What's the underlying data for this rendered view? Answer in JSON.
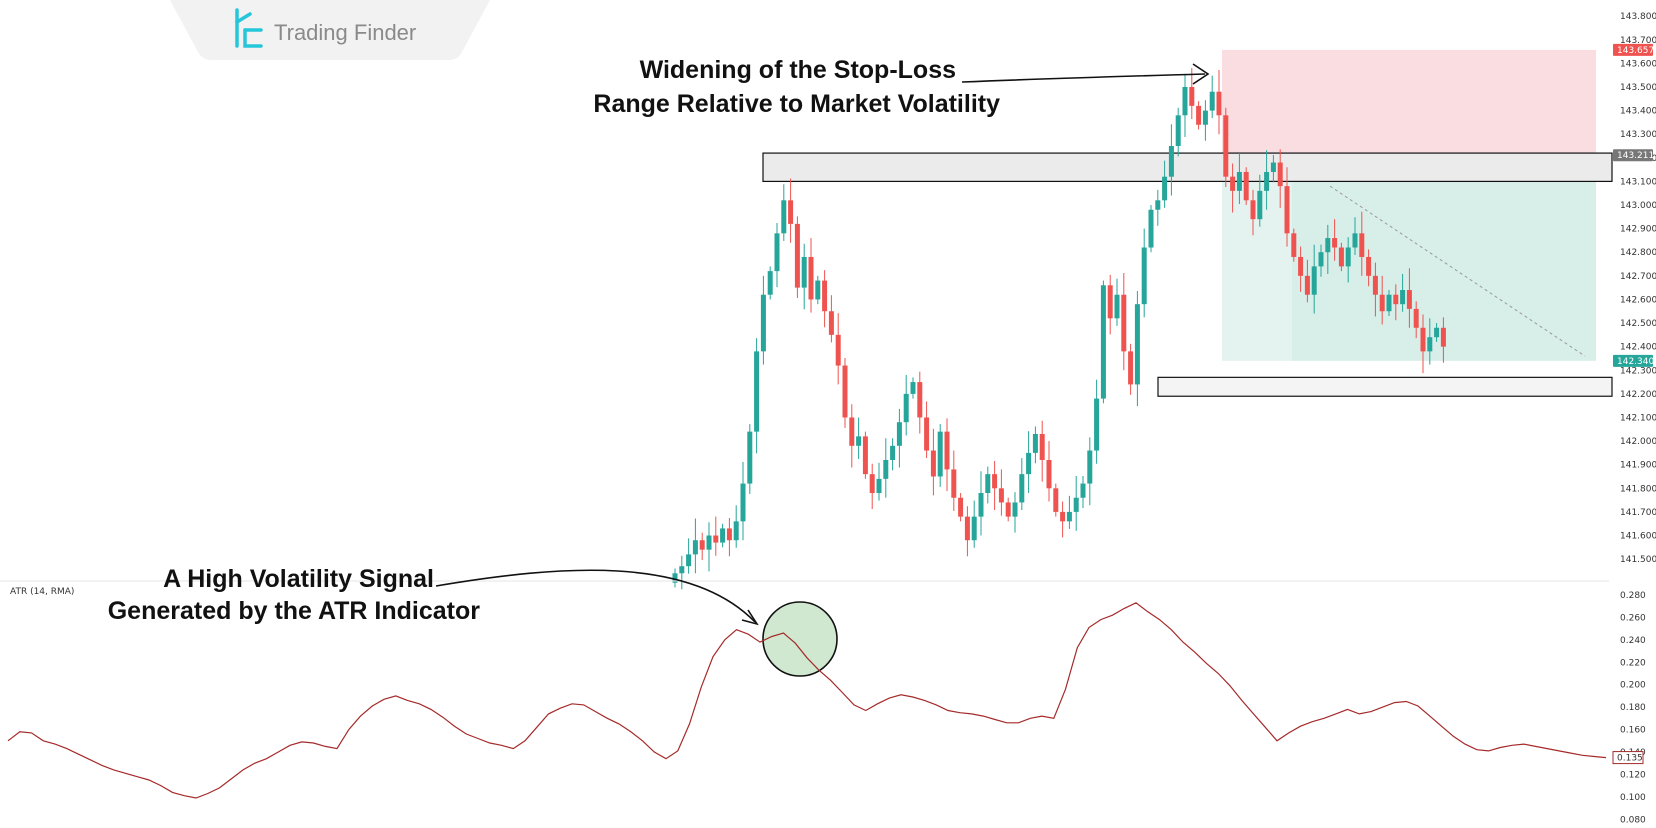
{
  "brand": {
    "name": "Trading Finder"
  },
  "annotations": {
    "stop_loss_line1": "Widening of the Stop-Loss",
    "stop_loss_line2": "Range Relative to Market Volatility",
    "atr_line1": "A High Volatility Signal",
    "atr_line2": "Generated by the ATR Indicator"
  },
  "colors": {
    "bull": "#26a69a",
    "bear": "#ef5350",
    "stop_zone": "#f8d7da",
    "target_zone": "#d3ebe6",
    "atr_line": "#a52a2a",
    "atr_highlight": "#cfe8cf"
  },
  "chart_data": [
    {
      "type": "candlestick",
      "title": "",
      "ylim": [
        141.42,
        143.86
      ],
      "y_ticks": [
        "143.800",
        "143.700",
        "143.600",
        "143.500",
        "143.400",
        "143.300",
        "143.200",
        "143.100",
        "143.000",
        "142.900",
        "142.800",
        "142.700",
        "142.600",
        "142.500",
        "142.400",
        "142.300",
        "142.200",
        "142.100",
        "142.000",
        "141.900",
        "141.800",
        "141.700",
        "141.600",
        "141.500"
      ],
      "price_tags": [
        {
          "value": "143.657",
          "color": "#ef5350"
        },
        {
          "value": "143.211",
          "color": "#777777"
        },
        {
          "value": "142.340",
          "color": "#26a69a"
        }
      ],
      "close_path": [
        141.44,
        141.47,
        141.52,
        141.58,
        141.54,
        141.6,
        141.57,
        141.63,
        141.58,
        141.66,
        141.82,
        142.04,
        142.38,
        142.62,
        142.72,
        142.88,
        143.02,
        142.92,
        142.65,
        142.78,
        142.6,
        142.68,
        142.55,
        142.45,
        142.32,
        142.1,
        141.98,
        142.02,
        141.86,
        141.78,
        141.84,
        141.92,
        141.98,
        142.08,
        142.2,
        142.25,
        142.1,
        141.96,
        141.85,
        142.04,
        141.88,
        141.76,
        141.68,
        141.58,
        141.68,
        141.78,
        141.86,
        141.8,
        141.74,
        141.68,
        141.74,
        141.86,
        141.95,
        142.03,
        141.92,
        141.8,
        141.7,
        141.66,
        141.7,
        141.76,
        141.82,
        141.96,
        142.18,
        142.66,
        142.52,
        142.62,
        142.38,
        142.24,
        142.58,
        142.82,
        142.98,
        143.02,
        143.12,
        143.25,
        143.38,
        143.5,
        143.42,
        143.34,
        143.4,
        143.48,
        143.38,
        143.12,
        143.06,
        143.14,
        143.02,
        142.94,
        143.06,
        143.14,
        143.18,
        143.08,
        142.88,
        142.78,
        142.7,
        142.62,
        142.74,
        142.8,
        142.86,
        142.82,
        142.74,
        142.82,
        142.88,
        142.78,
        142.7,
        142.62,
        142.55,
        142.62,
        142.58,
        142.64,
        142.56,
        142.48,
        142.38,
        142.44,
        142.48,
        142.4
      ],
      "zones": {
        "stop_loss": [
          143.211,
          143.657
        ],
        "target": [
          142.34,
          143.211
        ],
        "resistance": [
          143.1,
          143.22
        ],
        "support": [
          142.19,
          142.27
        ]
      }
    },
    {
      "type": "line",
      "title": "",
      "indicator_label": "ATR (14, RMA)",
      "ylim": [
        0.074,
        0.288
      ],
      "y_ticks": [
        "0.280",
        "0.260",
        "0.240",
        "0.220",
        "0.200",
        "0.180",
        "0.160",
        "0.140",
        "0.120",
        "0.100",
        "0.080"
      ],
      "last_value": "0.135",
      "series": [
        {
          "values": [
            0.15,
            0.158,
            0.157,
            0.15,
            0.147,
            0.143,
            0.138,
            0.133,
            0.128,
            0.124,
            0.121,
            0.118,
            0.115,
            0.11,
            0.104,
            0.101,
            0.099,
            0.103,
            0.108,
            0.116,
            0.124,
            0.13,
            0.134,
            0.14,
            0.146,
            0.149,
            0.148,
            0.145,
            0.143,
            0.16,
            0.172,
            0.181,
            0.187,
            0.19,
            0.186,
            0.183,
            0.178,
            0.171,
            0.163,
            0.156,
            0.152,
            0.148,
            0.146,
            0.143,
            0.15,
            0.162,
            0.174,
            0.179,
            0.183,
            0.182,
            0.176,
            0.17,
            0.165,
            0.158,
            0.15,
            0.14,
            0.134,
            0.141,
            0.165,
            0.198,
            0.225,
            0.24,
            0.249,
            0.245,
            0.238,
            0.243,
            0.246,
            0.237,
            0.224,
            0.213,
            0.204,
            0.193,
            0.182,
            0.177,
            0.183,
            0.188,
            0.191,
            0.189,
            0.186,
            0.182,
            0.177,
            0.175,
            0.174,
            0.172,
            0.169,
            0.166,
            0.166,
            0.17,
            0.172,
            0.17,
            0.196,
            0.233,
            0.251,
            0.258,
            0.262,
            0.268,
            0.273,
            0.265,
            0.258,
            0.249,
            0.238,
            0.229,
            0.219,
            0.21,
            0.199,
            0.186,
            0.174,
            0.162,
            0.15,
            0.157,
            0.163,
            0.167,
            0.17,
            0.174,
            0.178,
            0.174,
            0.176,
            0.18,
            0.184,
            0.185,
            0.181,
            0.172,
            0.163,
            0.154,
            0.147,
            0.142,
            0.141,
            0.144,
            0.146,
            0.147,
            0.145,
            0.143,
            0.141,
            0.139,
            0.137,
            0.136,
            0.135
          ]
        }
      ]
    }
  ]
}
